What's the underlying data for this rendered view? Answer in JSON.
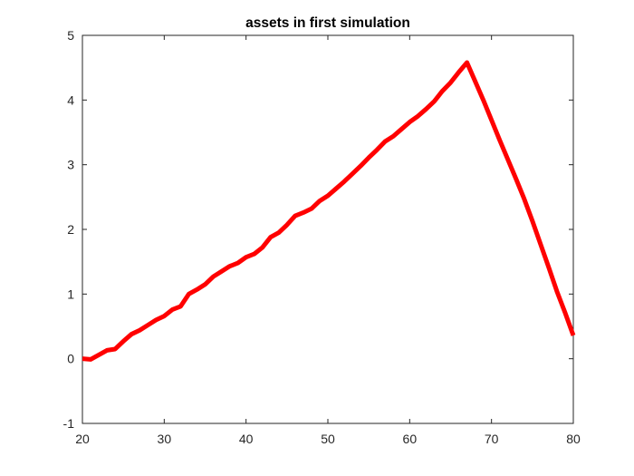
{
  "chart_data": {
    "type": "line",
    "title": "assets in first simulation",
    "xlabel": "",
    "ylabel": "",
    "xlim": [
      20,
      80
    ],
    "ylim": [
      -1,
      5
    ],
    "xticks": [
      20,
      30,
      40,
      50,
      60,
      70,
      80
    ],
    "yticks": [
      -1,
      0,
      1,
      2,
      3,
      4,
      5
    ],
    "xtick_labels": [
      "20",
      "30",
      "40",
      "50",
      "60",
      "70",
      "80"
    ],
    "ytick_labels": [
      "-1",
      "0",
      "1",
      "2",
      "3",
      "4",
      "5"
    ],
    "grid": false,
    "box": true,
    "series": [
      {
        "color": "#ff0000",
        "x": [
          20,
          21,
          22,
          23,
          24,
          25,
          26,
          27,
          28,
          29,
          30,
          31,
          32,
          33,
          34,
          35,
          36,
          37,
          38,
          39,
          40,
          41,
          42,
          43,
          44,
          45,
          46,
          47,
          48,
          49,
          50,
          51,
          52,
          53,
          54,
          55,
          56,
          57,
          58,
          59,
          60,
          61,
          62,
          63,
          64,
          65,
          66,
          67,
          68,
          69,
          70,
          71,
          72,
          73,
          74,
          75,
          76,
          77,
          78,
          79,
          80
        ],
        "y": [
          0.0,
          -0.01,
          0.06,
          0.13,
          0.15,
          0.27,
          0.38,
          0.44,
          0.52,
          0.6,
          0.66,
          0.76,
          0.81,
          1.0,
          1.07,
          1.15,
          1.27,
          1.35,
          1.43,
          1.48,
          1.57,
          1.62,
          1.72,
          1.88,
          1.95,
          2.07,
          2.21,
          2.26,
          2.32,
          2.44,
          2.52,
          2.63,
          2.74,
          2.86,
          2.98,
          3.11,
          3.23,
          3.36,
          3.44,
          3.55,
          3.66,
          3.75,
          3.86,
          3.98,
          4.14,
          4.27,
          4.43,
          4.58,
          4.29,
          4.0,
          3.69,
          3.38,
          3.08,
          2.78,
          2.47,
          2.13,
          1.77,
          1.41,
          1.04,
          0.71,
          0.36
        ]
      }
    ]
  }
}
